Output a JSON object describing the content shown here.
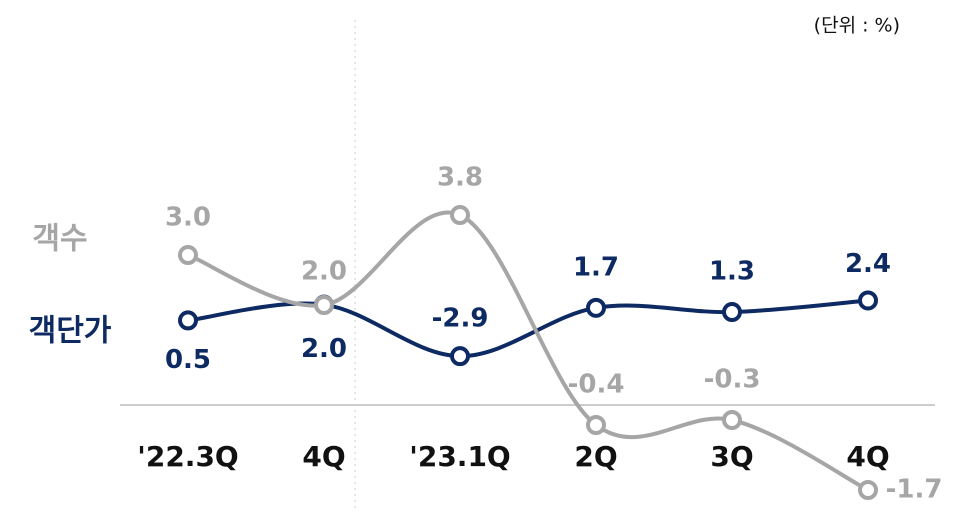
{
  "chart_data": {
    "type": "line",
    "unit_note": "(단위 : %)",
    "categories": [
      "'22.3Q",
      "4Q",
      "'23.1Q",
      "2Q",
      "3Q",
      "4Q"
    ],
    "series": [
      {
        "name": "객단가",
        "color": "#0d2a63",
        "axis": "y2",
        "values": [
          0.5,
          2.0,
          -2.9,
          1.7,
          1.3,
          2.4
        ],
        "value_labels": [
          "0.5",
          "2.0",
          "-2.9",
          "1.7",
          "1.3",
          "2.4"
        ]
      },
      {
        "name": "객수",
        "color": "#a6a6a6",
        "values": [
          3.0,
          2.0,
          3.8,
          -0.4,
          -0.3,
          -1.7
        ],
        "value_labels": [
          "3.0",
          "2.0",
          "3.8",
          "-0.4",
          "-0.3",
          "-1.7"
        ]
      }
    ],
    "ylim": [
      -1.9,
      6.9
    ],
    "y2lim": [
      -16.6,
      25.3
    ]
  }
}
